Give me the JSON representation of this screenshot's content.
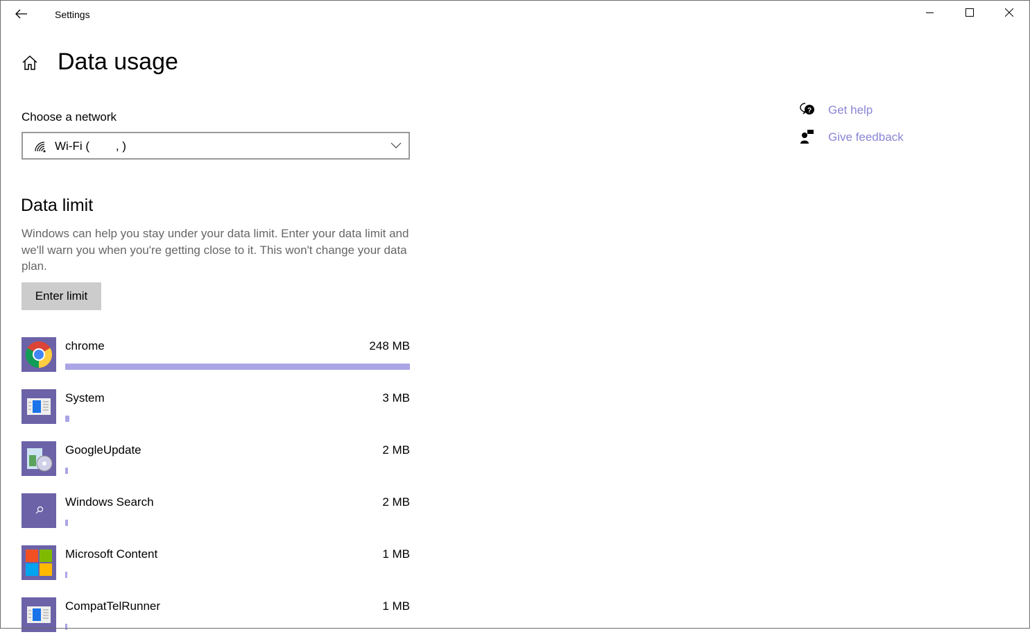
{
  "window": {
    "title": "Settings",
    "controls": [
      "minimize",
      "maximize",
      "close"
    ]
  },
  "page": {
    "title": "Data usage"
  },
  "network": {
    "label": "Choose a network",
    "selected": "Wi-Fi (        , )"
  },
  "data_limit": {
    "heading": "Data limit",
    "description": "Windows can help you stay under your data limit. Enter your data limit and we'll warn you when you're getting close to it. This won't change your data plan.",
    "button": "Enter limit"
  },
  "apps": [
    {
      "name": "chrome",
      "usage": "248 MB",
      "usage_mb": 248,
      "icon": "chrome-icon"
    },
    {
      "name": "System",
      "usage": "3 MB",
      "usage_mb": 3,
      "icon": "system-window-icon"
    },
    {
      "name": "GoogleUpdate",
      "usage": "2 MB",
      "usage_mb": 2,
      "icon": "installer-icon"
    },
    {
      "name": "Windows Search",
      "usage": "2 MB",
      "usage_mb": 2,
      "icon": "search-icon"
    },
    {
      "name": "Microsoft Content",
      "usage": "1 MB",
      "usage_mb": 1,
      "icon": "microsoft-logo-icon"
    },
    {
      "name": "CompatTelRunner",
      "usage": "1 MB",
      "usage_mb": 1,
      "icon": "system-window-icon"
    }
  ],
  "help": {
    "get_help": "Get help",
    "give_feedback": "Give feedback"
  },
  "colors": {
    "accent": "#8a85d4",
    "bar": "#aaa5e6",
    "app_icon_bg": "#6b62a8"
  }
}
